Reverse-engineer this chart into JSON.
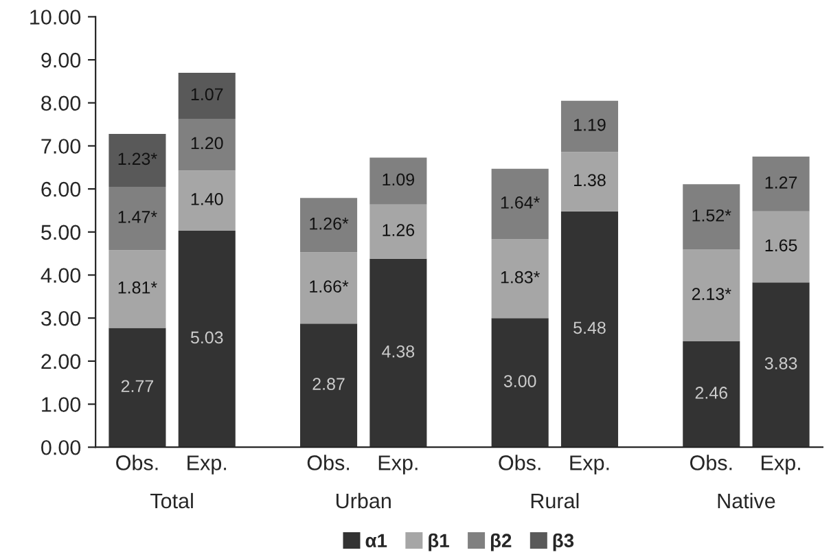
{
  "chart_data": {
    "type": "bar",
    "stacked": true,
    "categories": [
      "Obs.",
      "Exp.",
      "Obs.",
      "Exp.",
      "Obs.",
      "Exp.",
      "Obs.",
      "Exp."
    ],
    "series": [
      {
        "name": "α1",
        "color": "#333333",
        "values": [
          2.77,
          5.03,
          2.87,
          4.38,
          3.0,
          5.48,
          2.46,
          3.83
        ],
        "value_labels": [
          "2.77",
          "5.03",
          "2.87",
          "4.38",
          "3.00",
          "5.48",
          "2.46",
          "3.83"
        ]
      },
      {
        "name": "β1",
        "color": "#a6a6a6",
        "values": [
          1.81,
          1.4,
          1.66,
          1.26,
          1.83,
          1.38,
          2.13,
          1.65
        ],
        "value_labels": [
          "1.81*",
          "1.40",
          "1.66*",
          "1.26",
          "1.83*",
          "1.38",
          "2.13*",
          "1.65"
        ]
      },
      {
        "name": "β2",
        "color": "#808080",
        "values": [
          1.47,
          1.2,
          1.26,
          1.09,
          1.64,
          1.19,
          1.52,
          1.27
        ],
        "value_labels": [
          "1.47*",
          "1.20",
          "1.26*",
          "1.09",
          "1.64*",
          "1.19",
          "1.52*",
          "1.27"
        ]
      },
      {
        "name": "β3",
        "color": "#595959",
        "values": [
          1.23,
          1.07,
          null,
          null,
          null,
          null,
          null,
          null
        ],
        "value_labels": [
          "1.23*",
          "1.07",
          null,
          null,
          null,
          null,
          null,
          null
        ]
      }
    ],
    "ylim": [
      0,
      10
    ],
    "yticks": [
      {
        "value": 0,
        "label": "0.00"
      },
      {
        "value": 1,
        "label": "1.00"
      },
      {
        "value": 2,
        "label": "2.00"
      },
      {
        "value": 3,
        "label": "3.00"
      },
      {
        "value": 4,
        "label": "4.00"
      },
      {
        "value": 5,
        "label": "5.00"
      },
      {
        "value": 6,
        "label": "6.00"
      },
      {
        "value": 7,
        "label": "7.00"
      },
      {
        "value": 8,
        "label": "8.00"
      },
      {
        "value": 9,
        "label": "9.00"
      },
      {
        "value": 10,
        "label": "10.00"
      }
    ],
    "annotations": [
      "Total",
      "Urban",
      "Rural",
      "Native"
    ],
    "grid": false,
    "legend": "bottom"
  }
}
